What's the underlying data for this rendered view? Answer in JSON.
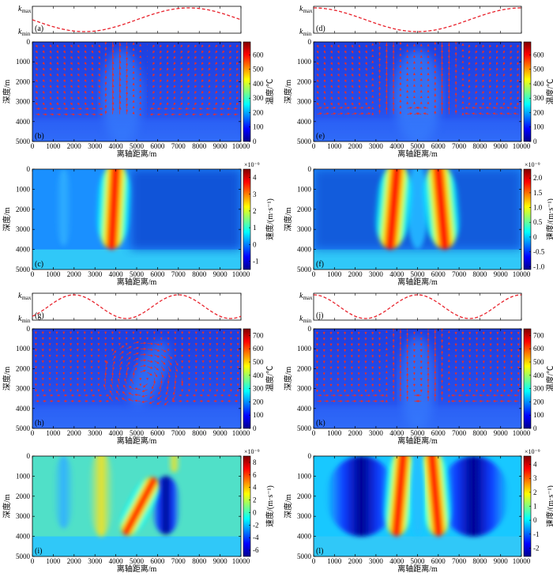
{
  "chart_data": {
    "type": "heatmap",
    "x_ticks": [
      "0",
      "1000",
      "2000",
      "3000",
      "4000",
      "5000",
      "6000",
      "7000",
      "8000",
      "9000",
      "10000"
    ],
    "y_ticks": [
      "0",
      "1000",
      "2000",
      "3000",
      "4000",
      "5000"
    ],
    "xlabel": "离轴距离/m",
    "ylabel": "深度/m",
    "xlim": [
      0,
      10000
    ],
    "ylim": [
      0,
      5000
    ],
    "k_labels": {
      "max": "k",
      "max_sub": "max",
      "min": "k",
      "min_sub": "min"
    },
    "colors": {
      "jet": [
        "#00008f",
        "#0000ff",
        "#0080ff",
        "#00ffff",
        "#80ff80",
        "#ffff00",
        "#ff8000",
        "#ff0000",
        "#800000"
      ],
      "curve": "#e8202a",
      "arrow": "#e03030"
    },
    "permeability_curves": [
      {
        "panel": "a",
        "label": "(a)",
        "period": 10000,
        "phase_max": 7500
      },
      {
        "panel": "d",
        "label": "(d)",
        "period": 10000,
        "phase_max": 0
      },
      {
        "panel": "g",
        "label": "(g)",
        "period": 5000,
        "phase_max": 2000
      },
      {
        "panel": "j",
        "label": "(j)",
        "period": 5000,
        "phase_max": 0
      }
    ],
    "temperature_panels": [
      {
        "panel": "b",
        "label": "(b)",
        "cbar_label": "温度/℃",
        "cbar_ticks": [
          "0",
          "100",
          "200",
          "300",
          "400",
          "500",
          "600"
        ],
        "cbar_range": [
          0,
          690
        ]
      },
      {
        "panel": "e",
        "label": "(e)",
        "cbar_label": "温度/℃",
        "cbar_ticks": [
          "0",
          "100",
          "200",
          "300",
          "400",
          "500",
          "600"
        ],
        "cbar_range": [
          0,
          690
        ]
      },
      {
        "panel": "h",
        "label": "(h)",
        "cbar_label": "温度/℃",
        "cbar_ticks": [
          "0",
          "100",
          "200",
          "300",
          "400",
          "500",
          "600",
          "700"
        ],
        "cbar_range": [
          0,
          750
        ]
      },
      {
        "panel": "k",
        "label": "(k)",
        "cbar_label": "温度/℃",
        "cbar_ticks": [
          "0",
          "100",
          "200",
          "300",
          "400",
          "500",
          "600",
          "700"
        ],
        "cbar_range": [
          0,
          750
        ]
      }
    ],
    "velocity_panels": [
      {
        "panel": "c",
        "label": "(c)",
        "cbar_label": "速度/(m·s⁻¹)",
        "cbar_exp": "×10⁻⁹",
        "cbar_ticks": [
          "-1",
          "0",
          "1",
          "2",
          "3",
          "4"
        ],
        "cbar_range": [
          -1.5,
          4.5
        ]
      },
      {
        "panel": "f",
        "label": "(f)",
        "cbar_label": "速度/(m·s⁻¹)",
        "cbar_exp": "×10⁻⁹",
        "cbar_ticks": [
          "-1.0",
          "-0.5",
          "0",
          "0.5",
          "1.0",
          "1.5",
          "2.0"
        ],
        "cbar_range": [
          -1.1,
          2.3
        ]
      },
      {
        "panel": "i",
        "label": "(i)",
        "cbar_label": "速度/(m·s⁻¹)",
        "cbar_exp": "×10⁻⁹",
        "cbar_ticks": [
          "-6",
          "-4",
          "-2",
          "0",
          "2",
          "4",
          "6",
          "8"
        ],
        "cbar_range": [
          -7,
          9
        ]
      },
      {
        "panel": "l",
        "label": "(l)",
        "cbar_label": "速度/(m·s⁻¹)",
        "cbar_exp": "×10⁻⁹",
        "cbar_ticks": [
          "-2",
          "-1",
          "0",
          "1",
          "2",
          "3",
          "4"
        ],
        "cbar_range": [
          -2.6,
          4.6
        ]
      }
    ]
  }
}
